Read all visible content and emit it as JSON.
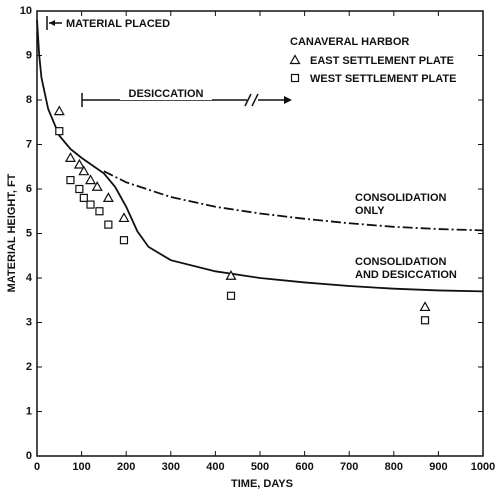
{
  "chart_data": {
    "type": "scatter-line",
    "xlabel": "TIME, DAYS",
    "ylabel": "MATERIAL HEIGHT, FT",
    "xlim": [
      0,
      1000
    ],
    "xticks": [
      0,
      100,
      200,
      300,
      400,
      500,
      600,
      700,
      800,
      900,
      1000
    ],
    "ylim": [
      0,
      10
    ],
    "yticks": [
      0,
      1,
      2,
      3,
      4,
      5,
      6,
      7,
      8,
      9,
      10
    ],
    "legend_title": "CANAVERAL HARBOR",
    "legend": "upper right",
    "annotations": [
      "MATERIAL PLACED",
      "DESICCATION"
    ],
    "points": [
      {
        "name": "EAST SETTLEMENT PLATE",
        "marker": "triangle",
        "color": "#111",
        "x": [
          50,
          75,
          95,
          105,
          120,
          135,
          160,
          195,
          435,
          870
        ],
        "values": [
          7.75,
          6.7,
          6.55,
          6.4,
          6.2,
          6.05,
          5.8,
          5.35,
          4.05,
          3.35
        ]
      },
      {
        "name": "WEST SETTLEMENT PLATE",
        "marker": "square",
        "color": "#111",
        "x": [
          50,
          75,
          95,
          105,
          120,
          140,
          160,
          195,
          435,
          870
        ],
        "values": [
          7.3,
          6.2,
          6.0,
          5.8,
          5.65,
          5.5,
          5.2,
          4.85,
          3.6,
          3.05
        ]
      }
    ],
    "curves": [
      {
        "label_lines": [
          "CONSOLIDATION",
          "ONLY"
        ],
        "dash": "dashdot",
        "color": "#111",
        "x": [
          150,
          200,
          300,
          400,
          500,
          600,
          700,
          800,
          900,
          1000
        ],
        "values": [
          6.4,
          6.15,
          5.82,
          5.6,
          5.45,
          5.33,
          5.23,
          5.15,
          5.1,
          5.07
        ]
      },
      {
        "label_lines": [
          "CONSOLIDATION",
          "AND DESICCATION"
        ],
        "dash": "solid",
        "color": "#111",
        "x": [
          0,
          5,
          10,
          25,
          50,
          75,
          100,
          150,
          175,
          200,
          225,
          250,
          300,
          400,
          500,
          600,
          700,
          800,
          900,
          1000
        ],
        "values": [
          9.8,
          9.0,
          8.5,
          7.8,
          7.2,
          6.9,
          6.7,
          6.35,
          6.05,
          5.6,
          5.05,
          4.7,
          4.4,
          4.15,
          4.0,
          3.9,
          3.82,
          3.76,
          3.72,
          3.7
        ]
      }
    ]
  }
}
